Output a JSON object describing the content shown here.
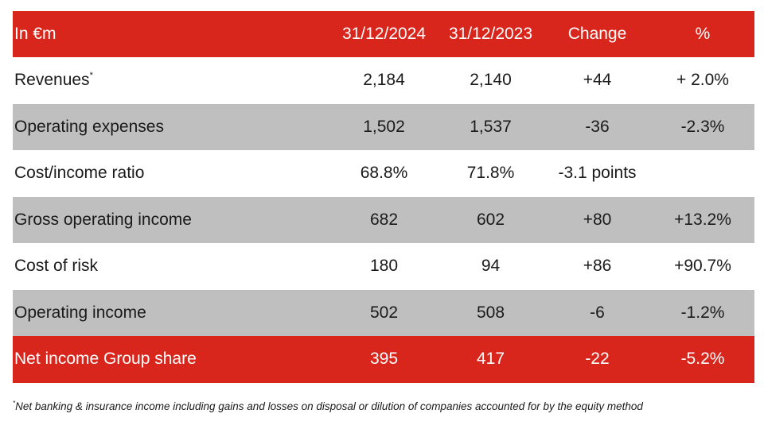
{
  "table": {
    "headers": [
      "In €m",
      "31/12/2024",
      "31/12/2023",
      "Change",
      "%"
    ],
    "rows": [
      {
        "label": "Revenues",
        "marker": "*",
        "v2024": "2,184",
        "v2023": "2,140",
        "change": "+44",
        "pct": "+ 2.0%"
      },
      {
        "label": "Operating expenses",
        "marker": "",
        "v2024": "1,502",
        "v2023": "1,537",
        "change": "-36",
        "pct": "-2.3%"
      },
      {
        "label": "Cost/income ratio",
        "marker": "",
        "v2024": "68.8%",
        "v2023": "71.8%",
        "change": "-3.1 points",
        "pct": ""
      },
      {
        "label": "Gross operating income",
        "marker": "",
        "v2024": "682",
        "v2023": "602",
        "change": "+80",
        "pct": "+13.2%"
      },
      {
        "label": "Cost of risk",
        "marker": "",
        "v2024": "180",
        "v2023": "94",
        "change": "+86",
        "pct": "+90.7%"
      },
      {
        "label": "Operating income",
        "marker": "",
        "v2024": "502",
        "v2023": "508",
        "change": "-6",
        "pct": "-1.2%"
      },
      {
        "label": "Net income Group share",
        "marker": "",
        "v2024": "395",
        "v2023": "417",
        "change": "-22",
        "pct": "-5.2%"
      }
    ]
  },
  "footnote": {
    "marker": "*",
    "text": "Net banking & insurance income including gains and losses on disposal or dilution of companies accounted for by the equity method"
  },
  "colors": {
    "header_bg": "#d9261c",
    "stripe_bg": "#bfbfbf",
    "total_bg": "#d9261c"
  }
}
